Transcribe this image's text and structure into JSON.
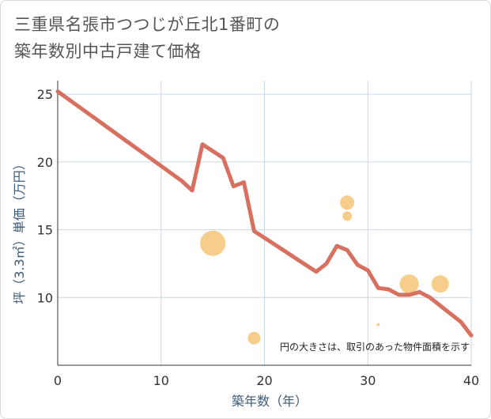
{
  "title_line1": "三重県名張市つつじが丘北1番町の",
  "title_line2": "築年数別中古戸建て価格",
  "chart_data": {
    "type": "line+scatter",
    "title": "三重県名張市つつじが丘北1番町の築年数別中古戸建て価格",
    "xlabel": "築年数（年）",
    "ylabel": "坪（3.3㎡）単価（万円）",
    "xlim": [
      0,
      40
    ],
    "ylim": [
      5,
      26
    ],
    "xticks": [
      0,
      10,
      20,
      30,
      40
    ],
    "yticks": [
      10,
      15,
      20,
      25
    ],
    "note": "円の大きさは、取引のあった物件面積を示す",
    "colors": {
      "line": "#d87060",
      "bubble": "#f5c477",
      "grid": "#c8d6e5",
      "axis": "#333333"
    },
    "line": {
      "x": [
        0,
        2,
        4,
        6,
        8,
        10,
        12,
        13,
        14,
        15,
        16,
        17,
        18,
        19,
        20,
        21,
        22,
        23,
        24,
        25,
        26,
        27,
        28,
        29,
        30,
        31,
        32,
        33,
        34,
        35,
        36,
        37,
        38,
        39,
        40
      ],
      "y": [
        25.2,
        24.1,
        23.0,
        21.9,
        20.8,
        19.7,
        18.6,
        17.9,
        21.3,
        20.8,
        20.3,
        18.2,
        18.5,
        14.9,
        14.4,
        13.9,
        13.4,
        12.9,
        12.4,
        11.9,
        12.5,
        13.8,
        13.5,
        12.4,
        12.0,
        10.7,
        10.6,
        10.2,
        10.2,
        10.4,
        10.0,
        9.4,
        8.8,
        8.2,
        7.2
      ]
    },
    "bubbles": [
      {
        "x": 15,
        "y": 14.0,
        "size": 16
      },
      {
        "x": 19,
        "y": 7.0,
        "size": 8
      },
      {
        "x": 28,
        "y": 17.0,
        "size": 9
      },
      {
        "x": 28,
        "y": 16.0,
        "size": 6
      },
      {
        "x": 31,
        "y": 8.0,
        "size": 2
      },
      {
        "x": 34,
        "y": 11.0,
        "size": 12
      },
      {
        "x": 37,
        "y": 11.0,
        "size": 11
      }
    ]
  }
}
